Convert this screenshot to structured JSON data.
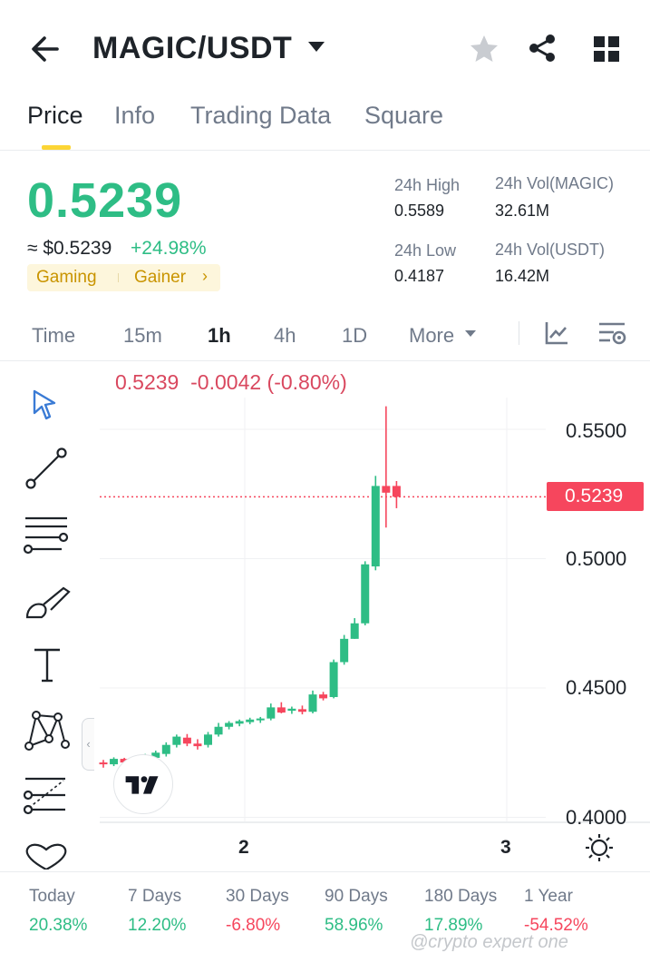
{
  "header": {
    "pair": "MAGIC/USDT",
    "icons": [
      "back-arrow-icon",
      "dropdown-caret-icon",
      "star-icon",
      "share-icon",
      "grid-menu-icon"
    ]
  },
  "tabs": [
    "Price",
    "Info",
    "Trading Data",
    "Square"
  ],
  "active_tab": "Price",
  "ticker": {
    "last_price": "0.5239",
    "usd_equiv": "≈ $0.5239",
    "change_pct": "+24.98%",
    "tags": [
      "Gaming",
      "Gainer"
    ],
    "stats": {
      "high_label": "24h High",
      "high_value": "0.5589",
      "low_label": "24h Low",
      "low_value": "0.4187",
      "vol_base_label": "24h Vol(MAGIC)",
      "vol_base_value": "32.61M",
      "vol_quote_label": "24h Vol(USDT)",
      "vol_quote_value": "16.42M"
    }
  },
  "intervals": {
    "items": [
      "Time",
      "15m",
      "1h",
      "4h",
      "1D",
      "More"
    ],
    "active": "1h"
  },
  "chart": {
    "ohlc_price": "0.5239",
    "ohlc_change": "-0.0042",
    "ohlc_change_pct": "(-0.80%)",
    "y_ticks": [
      "0.5500",
      "0.5000",
      "0.4500",
      "0.4000"
    ],
    "last_price_tag": "0.5239",
    "x_ticks": [
      "2",
      "3"
    ],
    "tools": [
      "cursor-icon",
      "trend-line-icon",
      "horizontal-lines-icon",
      "brush-icon",
      "text-tool-icon",
      "pattern-icon",
      "fib-retracement-icon",
      "favorite-heart-icon"
    ],
    "colors": {
      "up": "#2ebd85",
      "down": "#f6465d"
    }
  },
  "chart_data": {
    "type": "candlestick",
    "x_ticks": [
      "2",
      "3"
    ],
    "ylim": [
      0.4,
      0.565
    ],
    "y_ticks": [
      0.55,
      0.5,
      0.45,
      0.4
    ],
    "last_price": 0.5239,
    "candles": [
      {
        "o": 0.4212,
        "h": 0.4222,
        "l": 0.4192,
        "c": 0.4205
      },
      {
        "o": 0.4205,
        "h": 0.4232,
        "l": 0.4198,
        "c": 0.4226
      },
      {
        "o": 0.4226,
        "h": 0.423,
        "l": 0.4205,
        "c": 0.4212
      },
      {
        "o": 0.4197,
        "h": 0.4232,
        "l": 0.4185,
        "c": 0.4203
      },
      {
        "o": 0.4198,
        "h": 0.4245,
        "l": 0.419,
        "c": 0.4238
      },
      {
        "o": 0.423,
        "h": 0.4258,
        "l": 0.4222,
        "c": 0.425
      },
      {
        "o": 0.4245,
        "h": 0.429,
        "l": 0.4235,
        "c": 0.428
      },
      {
        "o": 0.428,
        "h": 0.432,
        "l": 0.427,
        "c": 0.4312
      },
      {
        "o": 0.4308,
        "h": 0.4322,
        "l": 0.4275,
        "c": 0.4285
      },
      {
        "o": 0.4285,
        "h": 0.4302,
        "l": 0.4262,
        "c": 0.4275
      },
      {
        "o": 0.428,
        "h": 0.433,
        "l": 0.427,
        "c": 0.432
      },
      {
        "o": 0.432,
        "h": 0.4365,
        "l": 0.4312,
        "c": 0.435
      },
      {
        "o": 0.435,
        "h": 0.4372,
        "l": 0.434,
        "c": 0.4365
      },
      {
        "o": 0.4362,
        "h": 0.4378,
        "l": 0.4352,
        "c": 0.4372
      },
      {
        "o": 0.4368,
        "h": 0.4385,
        "l": 0.436,
        "c": 0.4378
      },
      {
        "o": 0.4375,
        "h": 0.4388,
        "l": 0.4365,
        "c": 0.4382
      },
      {
        "o": 0.4382,
        "h": 0.444,
        "l": 0.4375,
        "c": 0.4425
      },
      {
        "o": 0.4425,
        "h": 0.4445,
        "l": 0.4402,
        "c": 0.4405
      },
      {
        "o": 0.4412,
        "h": 0.4428,
        "l": 0.44,
        "c": 0.442
      },
      {
        "o": 0.4418,
        "h": 0.4432,
        "l": 0.4398,
        "c": 0.4408
      },
      {
        "o": 0.4408,
        "h": 0.449,
        "l": 0.4402,
        "c": 0.4475
      },
      {
        "o": 0.4475,
        "h": 0.4485,
        "l": 0.4452,
        "c": 0.446
      },
      {
        "o": 0.4465,
        "h": 0.461,
        "l": 0.446,
        "c": 0.46
      },
      {
        "o": 0.46,
        "h": 0.4705,
        "l": 0.459,
        "c": 0.469
      },
      {
        "o": 0.469,
        "h": 0.477,
        "l": 0.469,
        "c": 0.475
      },
      {
        "o": 0.475,
        "h": 0.499,
        "l": 0.4742,
        "c": 0.4978
      },
      {
        "o": 0.497,
        "h": 0.532,
        "l": 0.4955,
        "c": 0.5281
      },
      {
        "o": 0.5281,
        "h": 0.5589,
        "l": 0.512,
        "c": 0.5255
      },
      {
        "o": 0.5281,
        "h": 0.53,
        "l": 0.5195,
        "c": 0.5239
      }
    ]
  },
  "performance": [
    {
      "label": "Today",
      "value": "20.38%",
      "dir": "up"
    },
    {
      "label": "7 Days",
      "value": "12.20%",
      "dir": "up"
    },
    {
      "label": "30 Days",
      "value": "-6.80%",
      "dir": "down"
    },
    {
      "label": "90 Days",
      "value": "58.96%",
      "dir": "up"
    },
    {
      "label": "180 Days",
      "value": "17.89%",
      "dir": "up"
    },
    {
      "label": "1 Year",
      "value": "-54.52%",
      "dir": "down"
    }
  ],
  "watermark": "@crypto expert one"
}
